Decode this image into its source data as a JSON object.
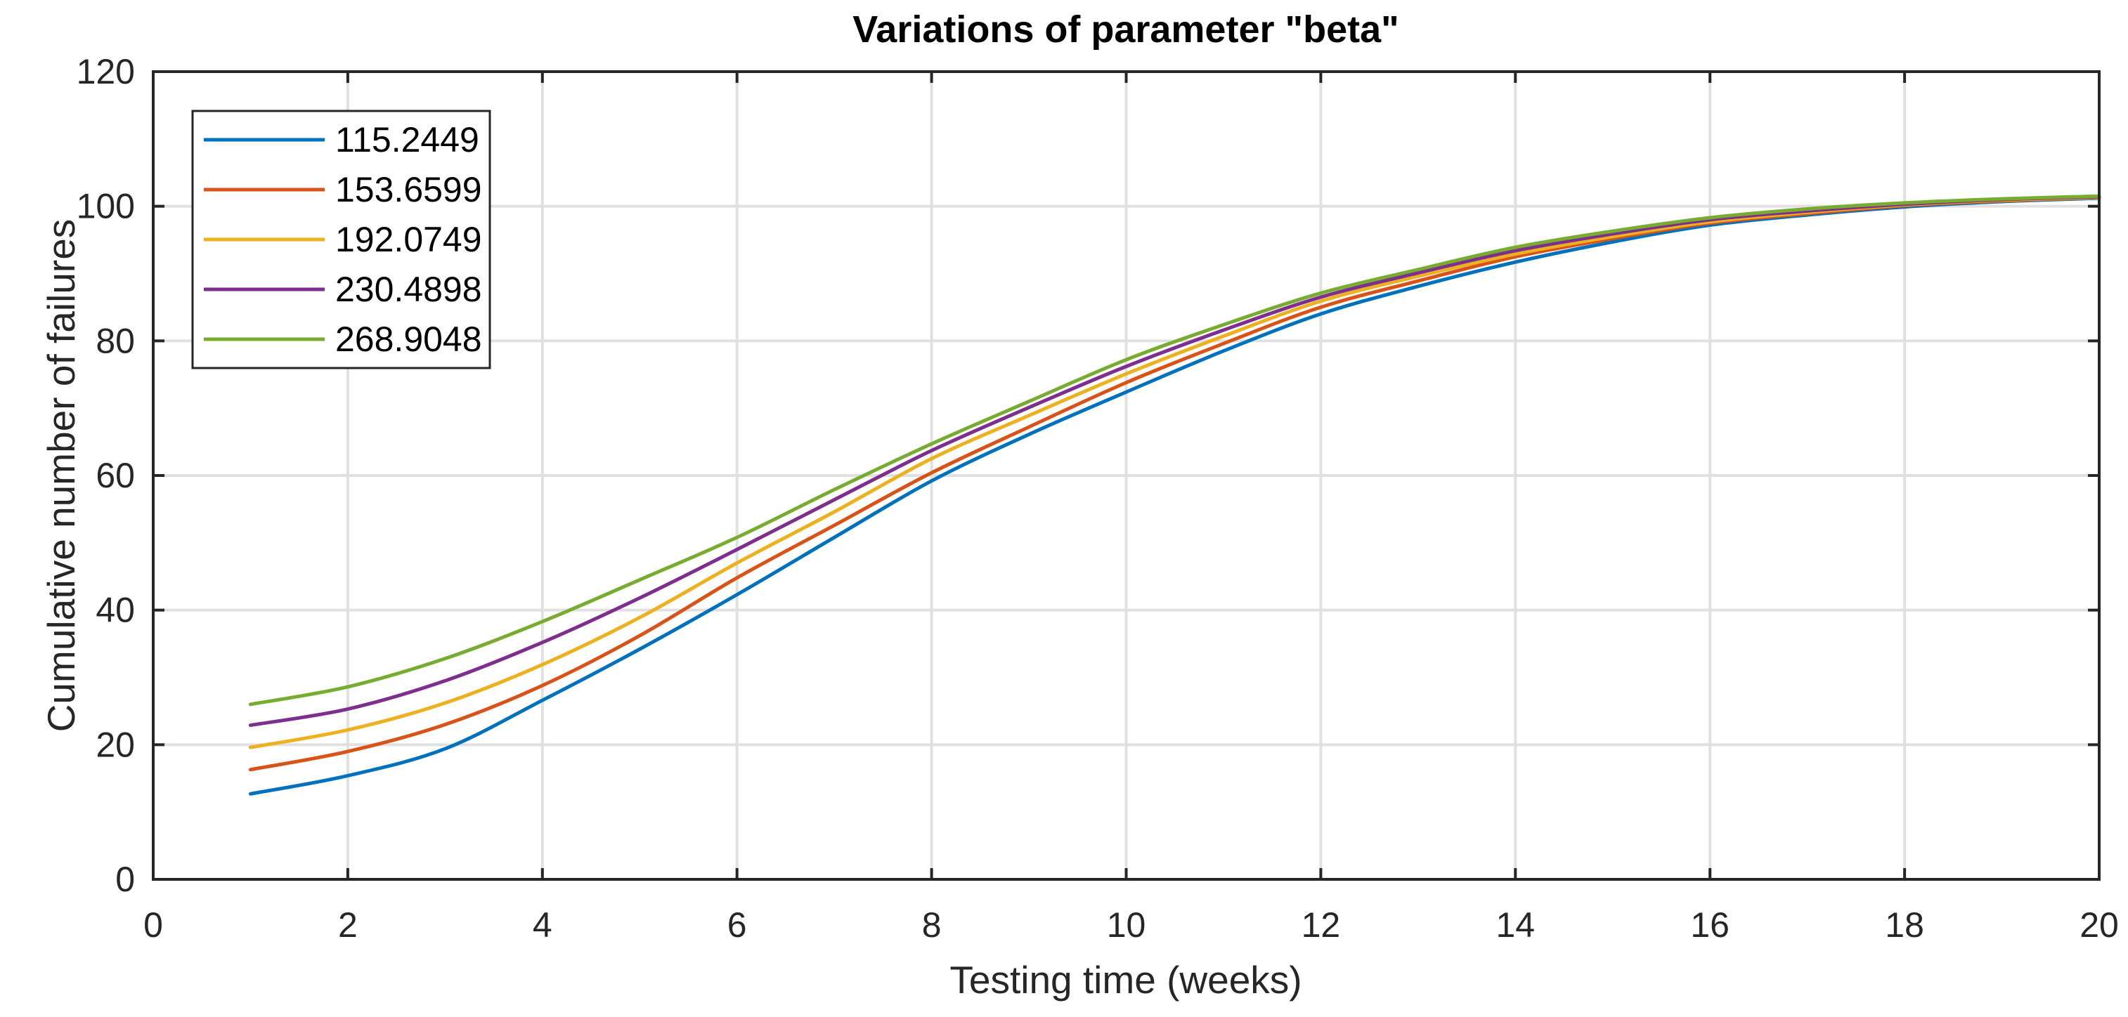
{
  "chart_data": {
    "type": "line",
    "title": "Variations of parameter \"beta\"",
    "xlabel": "Testing time (weeks)",
    "ylabel": "Cumulative number of failures",
    "xlim": [
      0,
      20
    ],
    "ylim": [
      0,
      120
    ],
    "xticks": [
      0,
      2,
      4,
      6,
      8,
      10,
      12,
      14,
      16,
      18,
      20
    ],
    "yticks": [
      0,
      20,
      40,
      60,
      80,
      100,
      120
    ],
    "grid": true,
    "legend_position": "top-left",
    "x": [
      1,
      2,
      3,
      4,
      5,
      6,
      7,
      8,
      9,
      10,
      11,
      12,
      13,
      14,
      15,
      16,
      17,
      18,
      19,
      20
    ],
    "series": [
      {
        "name": "115.2449",
        "color": "#0072BD",
        "values": [
          12.7,
          15.4,
          19.4,
          26.6,
          34.2,
          42.3,
          50.8,
          59.2,
          66.1,
          72.4,
          78.5,
          84.0,
          88.1,
          91.7,
          94.7,
          97.2,
          98.7,
          99.9,
          100.7,
          101.2
        ]
      },
      {
        "name": "153.6599",
        "color": "#D95319",
        "values": [
          16.3,
          19.0,
          23.0,
          28.8,
          36.2,
          44.8,
          52.6,
          60.4,
          67.2,
          73.8,
          79.6,
          85.0,
          88.9,
          92.5,
          95.2,
          97.5,
          98.9,
          100.1,
          100.8,
          101.3
        ]
      },
      {
        "name": "192.0749",
        "color": "#EDB120",
        "values": [
          19.6,
          22.2,
          26.2,
          31.9,
          38.9,
          47.0,
          54.6,
          62.5,
          68.9,
          75.1,
          80.7,
          85.9,
          89.6,
          92.9,
          95.5,
          97.7,
          99.1,
          100.2,
          100.9,
          101.3
        ]
      },
      {
        "name": "230.4898",
        "color": "#7E2F8E",
        "values": [
          22.9,
          25.3,
          29.5,
          35.2,
          41.8,
          49.0,
          56.4,
          63.7,
          70.1,
          76.2,
          81.6,
          86.5,
          90.1,
          93.4,
          95.9,
          98.0,
          99.3,
          100.3,
          101.0,
          101.4
        ]
      },
      {
        "name": "268.9048",
        "color": "#77AC30",
        "values": [
          26.0,
          28.6,
          32.8,
          38.3,
          44.5,
          50.8,
          57.9,
          64.7,
          71.0,
          77.2,
          82.4,
          87.1,
          90.6,
          93.9,
          96.3,
          98.3,
          99.6,
          100.5,
          101.1,
          101.5
        ]
      }
    ]
  },
  "styles": {
    "axis_color": "#262626",
    "grid_color": "#e0e0e0",
    "background": "#ffffff"
  }
}
